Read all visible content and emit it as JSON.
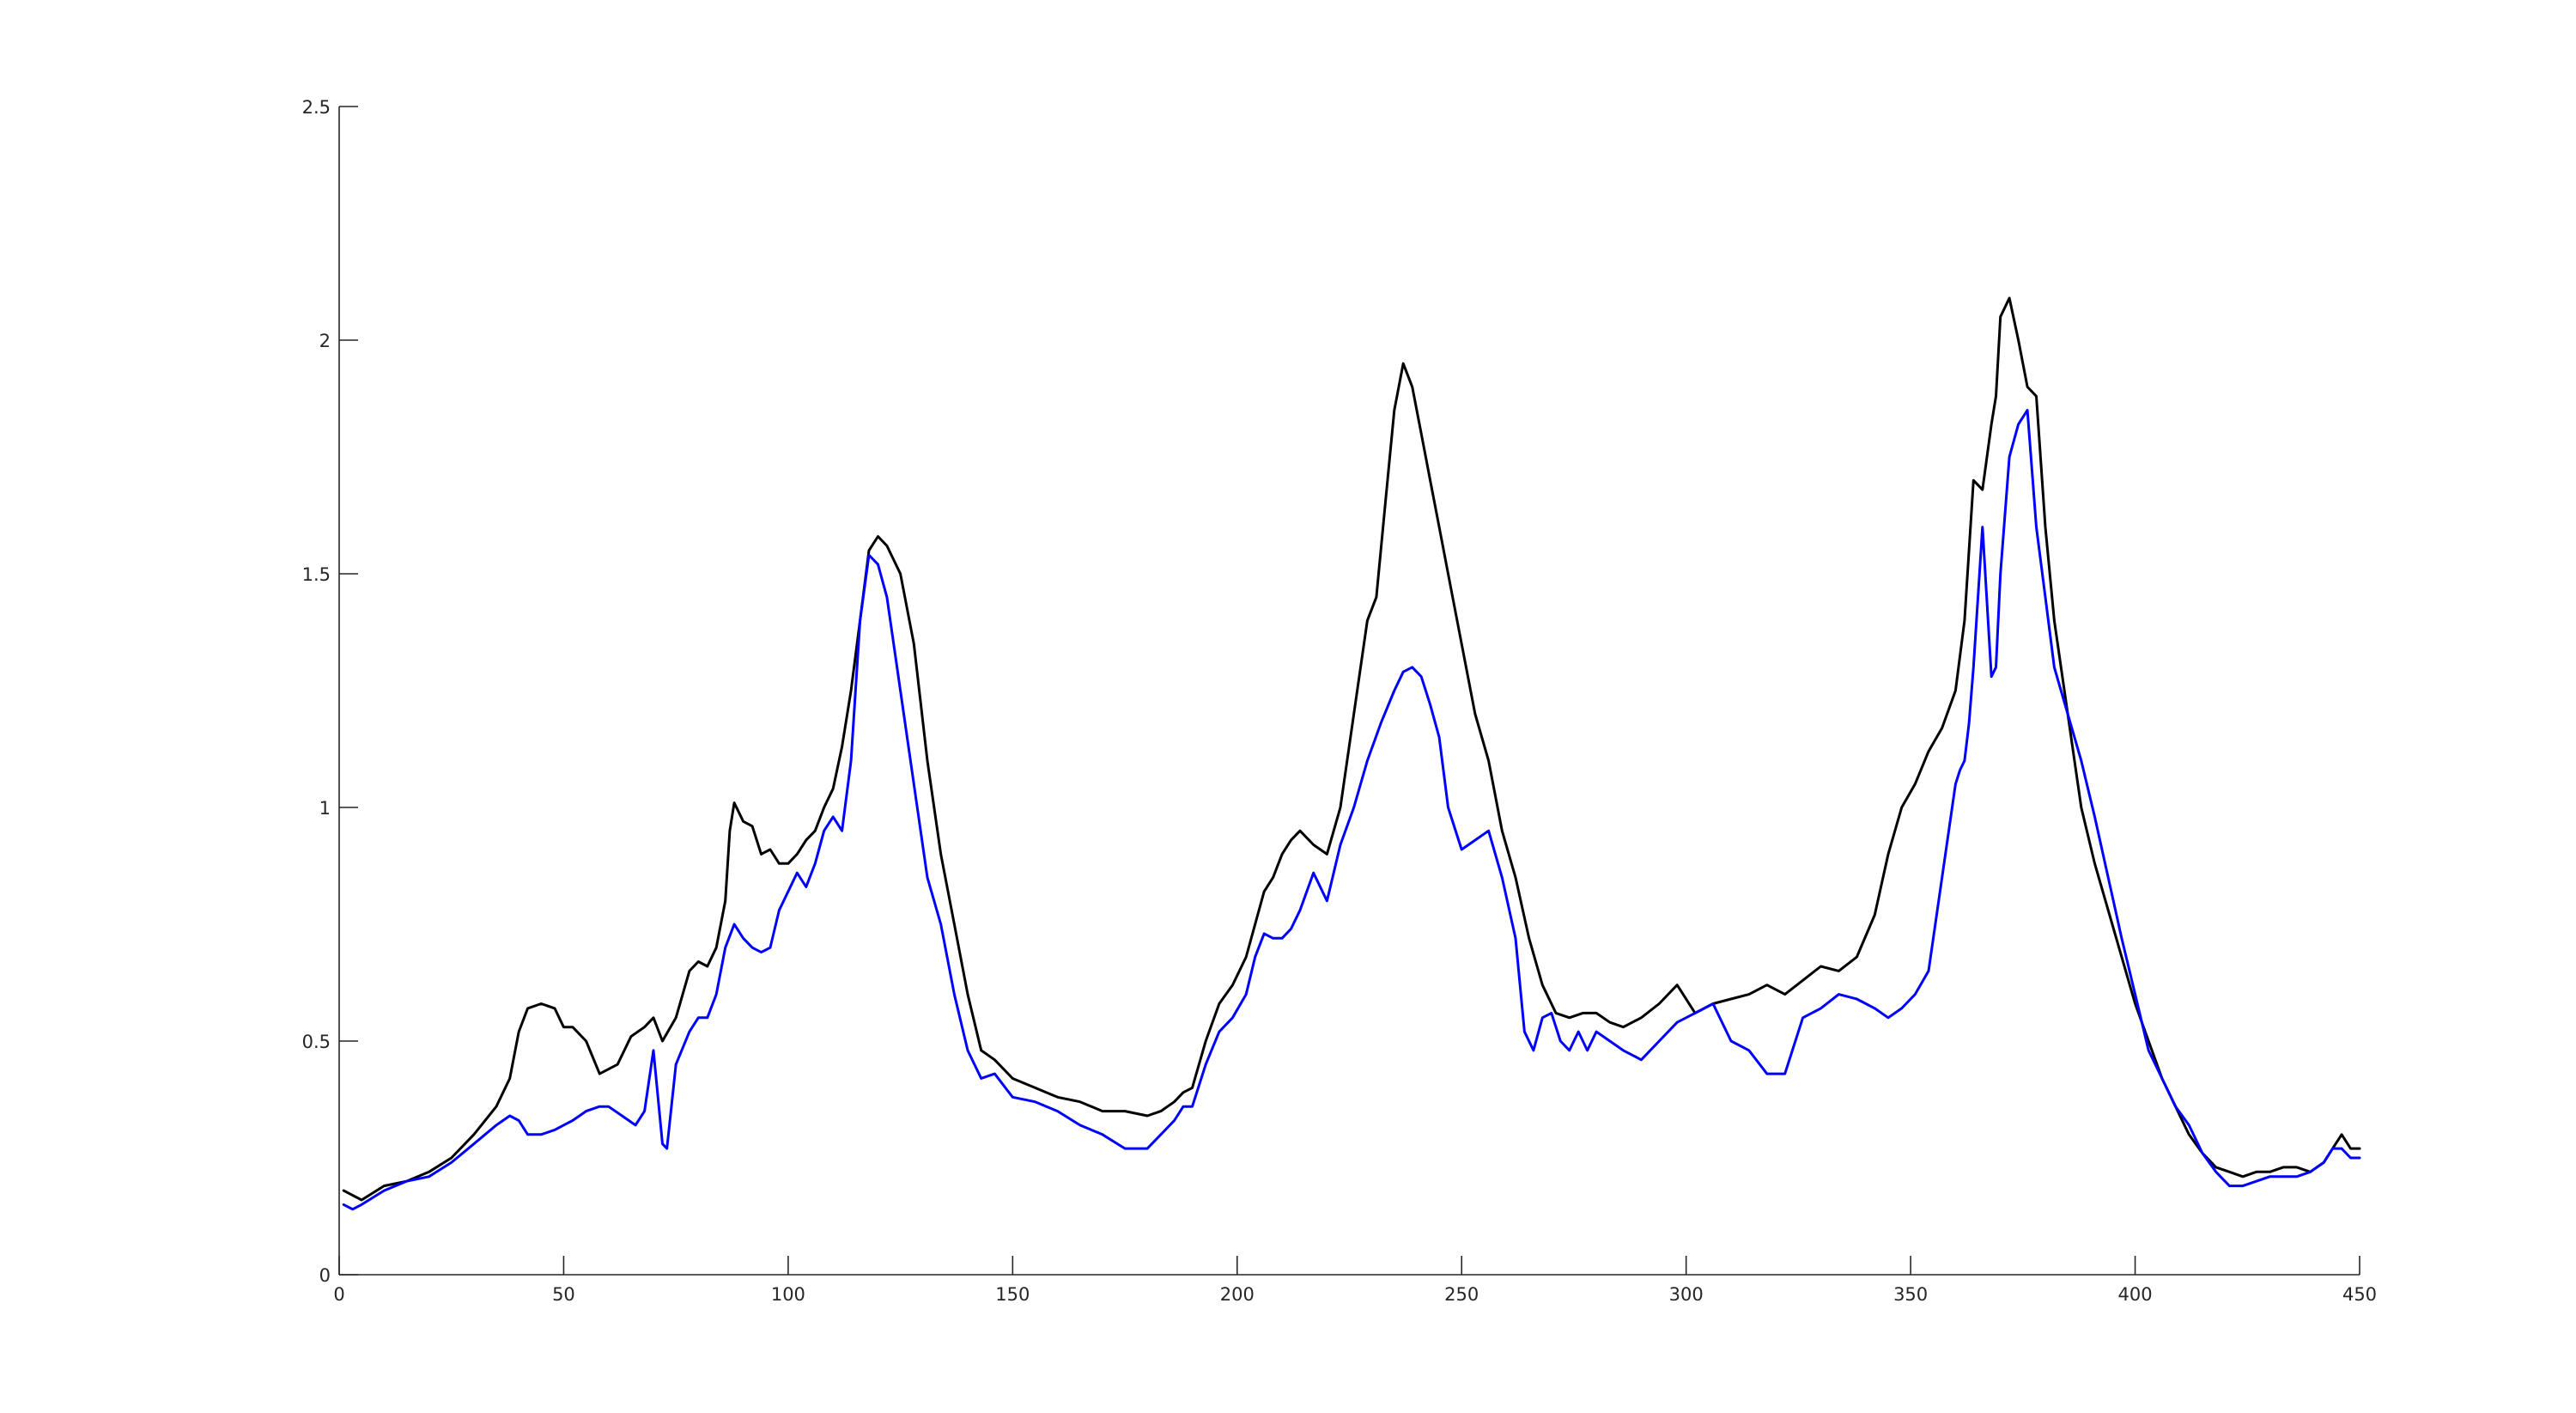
{
  "chart_data": {
    "type": "line",
    "title": "",
    "xlabel": "",
    "ylabel": "",
    "xlim": [
      0,
      450
    ],
    "ylim": [
      0,
      2.5
    ],
    "xticks": [
      0,
      50,
      100,
      150,
      200,
      250,
      300,
      350,
      400,
      450
    ],
    "xtick_labels": [
      "0",
      "50",
      "100",
      "150",
      "200",
      "250",
      "300",
      "350",
      "400",
      "450"
    ],
    "yticks": [
      0,
      0.5,
      1,
      1.5,
      2,
      2.5
    ],
    "ytick_labels": [
      "0",
      "0.5",
      "1",
      "1.5",
      "2",
      "2.5"
    ],
    "grid": false,
    "legend": "none",
    "series": [
      {
        "color": "#000000",
        "x": [
          1,
          5,
          10,
          15,
          20,
          25,
          30,
          35,
          38,
          40,
          42,
          45,
          48,
          50,
          52,
          55,
          58,
          62,
          65,
          68,
          70,
          72,
          75,
          78,
          80,
          82,
          84,
          86,
          87,
          88,
          90,
          92,
          94,
          96,
          98,
          100,
          102,
          104,
          106,
          108,
          110,
          112,
          114,
          116,
          118,
          120,
          122,
          125,
          128,
          131,
          134,
          137,
          140,
          143,
          146,
          150,
          155,
          160,
          165,
          170,
          175,
          180,
          183,
          186,
          188,
          190,
          193,
          196,
          199,
          202,
          204,
          206,
          208,
          210,
          212,
          214,
          217,
          220,
          223,
          226,
          229,
          231,
          233,
          235,
          237,
          239,
          241,
          243,
          245,
          247,
          250,
          253,
          256,
          259,
          262,
          265,
          268,
          271,
          274,
          277,
          280,
          283,
          286,
          290,
          294,
          298,
          302,
          306,
          310,
          314,
          318,
          322,
          326,
          330,
          334,
          338,
          342,
          345,
          348,
          351,
          354,
          357,
          360,
          362,
          364,
          366,
          368,
          369,
          370,
          372,
          374,
          376,
          378,
          380,
          382,
          385,
          388,
          391,
          394,
          397,
          400,
          403,
          406,
          409,
          412,
          415,
          418,
          421,
          424,
          427,
          430,
          433,
          436,
          439,
          442,
          444,
          446,
          448,
          450
        ],
        "y": [
          0.18,
          0.16,
          0.19,
          0.2,
          0.22,
          0.25,
          0.3,
          0.36,
          0.42,
          0.52,
          0.57,
          0.58,
          0.57,
          0.53,
          0.53,
          0.5,
          0.43,
          0.45,
          0.51,
          0.53,
          0.55,
          0.5,
          0.55,
          0.65,
          0.67,
          0.66,
          0.7,
          0.8,
          0.95,
          1.01,
          0.97,
          0.96,
          0.9,
          0.91,
          0.88,
          0.88,
          0.9,
          0.93,
          0.95,
          1.0,
          1.04,
          1.13,
          1.25,
          1.4,
          1.55,
          1.58,
          1.56,
          1.5,
          1.35,
          1.1,
          0.9,
          0.75,
          0.6,
          0.48,
          0.46,
          0.42,
          0.4,
          0.38,
          0.37,
          0.35,
          0.35,
          0.34,
          0.35,
          0.37,
          0.39,
          0.4,
          0.5,
          0.58,
          0.62,
          0.68,
          0.75,
          0.82,
          0.85,
          0.9,
          0.93,
          0.95,
          0.92,
          0.9,
          1.0,
          1.2,
          1.4,
          1.45,
          1.65,
          1.85,
          1.95,
          1.9,
          1.8,
          1.7,
          1.6,
          1.5,
          1.35,
          1.2,
          1.1,
          0.95,
          0.85,
          0.72,
          0.62,
          0.56,
          0.55,
          0.56,
          0.56,
          0.54,
          0.53,
          0.55,
          0.58,
          0.62,
          0.56,
          0.58,
          0.59,
          0.6,
          0.62,
          0.6,
          0.63,
          0.66,
          0.65,
          0.68,
          0.77,
          0.9,
          1.0,
          1.05,
          1.12,
          1.17,
          1.25,
          1.4,
          1.7,
          1.68,
          1.82,
          1.88,
          2.05,
          2.09,
          2.0,
          1.9,
          1.88,
          1.6,
          1.4,
          1.2,
          1.0,
          0.88,
          0.78,
          0.68,
          0.58,
          0.5,
          0.42,
          0.36,
          0.3,
          0.26,
          0.23,
          0.22,
          0.21,
          0.22,
          0.22,
          0.23,
          0.23,
          0.22,
          0.24,
          0.27,
          0.3,
          0.27,
          0.27
        ]
      },
      {
        "color": "#0000ff",
        "x": [
          1,
          3,
          5,
          10,
          15,
          20,
          25,
          30,
          35,
          38,
          40,
          42,
          45,
          48,
          50,
          52,
          55,
          58,
          60,
          63,
          66,
          68,
          70,
          72,
          73,
          75,
          78,
          80,
          82,
          84,
          86,
          88,
          90,
          92,
          94,
          96,
          98,
          100,
          102,
          104,
          106,
          108,
          110,
          112,
          114,
          116,
          118,
          120,
          122,
          125,
          128,
          131,
          134,
          137,
          140,
          143,
          146,
          150,
          155,
          160,
          165,
          170,
          175,
          180,
          183,
          186,
          188,
          190,
          193,
          196,
          199,
          202,
          204,
          206,
          208,
          210,
          212,
          214,
          217,
          220,
          223,
          226,
          229,
          232,
          235,
          237,
          239,
          241,
          243,
          245,
          247,
          250,
          253,
          256,
          259,
          262,
          264,
          266,
          268,
          270,
          272,
          274,
          276,
          278,
          280,
          283,
          286,
          290,
          294,
          298,
          302,
          306,
          310,
          314,
          318,
          322,
          326,
          330,
          334,
          338,
          342,
          345,
          348,
          351,
          354,
          357,
          360,
          361,
          362,
          363,
          364,
          366,
          368,
          369,
          370,
          372,
          374,
          376,
          378,
          380,
          382,
          385,
          388,
          391,
          394,
          397,
          400,
          403,
          406,
          409,
          412,
          415,
          418,
          421,
          424,
          427,
          430,
          433,
          436,
          439,
          442,
          444,
          446,
          448,
          450
        ],
        "y": [
          0.15,
          0.14,
          0.15,
          0.18,
          0.2,
          0.21,
          0.24,
          0.28,
          0.32,
          0.34,
          0.33,
          0.3,
          0.3,
          0.31,
          0.32,
          0.33,
          0.35,
          0.36,
          0.36,
          0.34,
          0.32,
          0.35,
          0.48,
          0.28,
          0.27,
          0.45,
          0.52,
          0.55,
          0.55,
          0.6,
          0.7,
          0.75,
          0.72,
          0.7,
          0.69,
          0.7,
          0.78,
          0.82,
          0.86,
          0.83,
          0.88,
          0.95,
          0.98,
          0.95,
          1.1,
          1.4,
          1.54,
          1.52,
          1.45,
          1.25,
          1.05,
          0.85,
          0.75,
          0.6,
          0.48,
          0.42,
          0.43,
          0.38,
          0.37,
          0.35,
          0.32,
          0.3,
          0.27,
          0.27,
          0.3,
          0.33,
          0.36,
          0.36,
          0.45,
          0.52,
          0.55,
          0.6,
          0.68,
          0.73,
          0.72,
          0.72,
          0.74,
          0.78,
          0.86,
          0.8,
          0.92,
          1.0,
          1.1,
          1.18,
          1.25,
          1.29,
          1.3,
          1.28,
          1.22,
          1.15,
          1.0,
          0.91,
          0.93,
          0.95,
          0.85,
          0.72,
          0.52,
          0.48,
          0.55,
          0.56,
          0.5,
          0.48,
          0.52,
          0.48,
          0.52,
          0.5,
          0.48,
          0.46,
          0.5,
          0.54,
          0.56,
          0.58,
          0.5,
          0.48,
          0.43,
          0.43,
          0.55,
          0.57,
          0.6,
          0.59,
          0.57,
          0.55,
          0.57,
          0.6,
          0.65,
          0.85,
          1.05,
          1.08,
          1.1,
          1.18,
          1.3,
          1.6,
          1.28,
          1.3,
          1.5,
          1.75,
          1.82,
          1.85,
          1.6,
          1.45,
          1.3,
          1.2,
          1.1,
          0.98,
          0.85,
          0.72,
          0.6,
          0.48,
          0.42,
          0.36,
          0.32,
          0.26,
          0.22,
          0.19,
          0.19,
          0.2,
          0.21,
          0.21,
          0.21,
          0.22,
          0.24,
          0.27,
          0.27,
          0.25,
          0.25
        ]
      }
    ]
  }
}
